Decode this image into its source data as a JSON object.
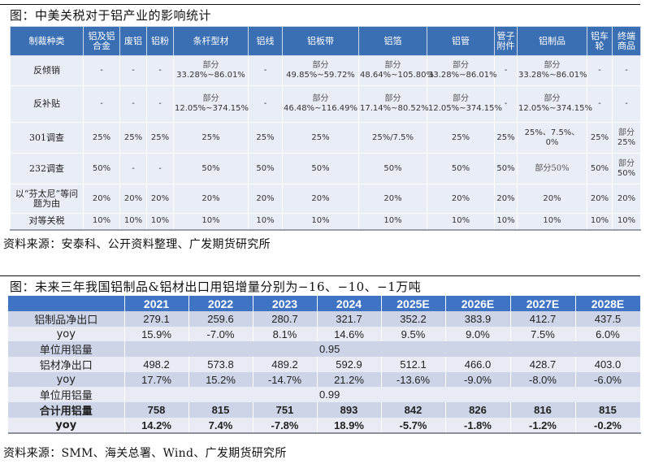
{
  "figure1": {
    "title": "图：中美关税对于铝产业的影响统计",
    "columns": [
      "制裁种类",
      "铝及铝合金",
      "废铝",
      "铝粉",
      "条杆型材",
      "铝线",
      "铝板带",
      "铝箔",
      "铝管",
      "管子附件",
      "铝制品",
      "铝车轮",
      "终端商品"
    ],
    "rows": [
      {
        "label": "反倾销",
        "cells": [
          "-",
          "-",
          "-",
          "部分|33.28%~86.01%",
          "-",
          "部分|49.85%~59.72%",
          "部分|48.64%~105.80%",
          "部分|33.28%~86.01%",
          "-",
          "部分|33.28%~86.01%",
          "-",
          "-"
        ]
      },
      {
        "label": "反补贴",
        "cells": [
          "-",
          "-",
          "-",
          "部分|12.05%~374.15%",
          "-",
          "部分|46.48%~116.49%",
          "部分|17.14%~80.52%",
          "部分|12.05%~374.15%",
          "-",
          "部分|12.05%~374.15%",
          "-",
          "-"
        ]
      },
      {
        "label": "301调查",
        "cells": [
          "25%",
          "25%",
          "25%",
          "25%",
          "25%",
          "25%",
          "25%/7.5%",
          "25%",
          "25%",
          "25%、7.5%、0%",
          "25%",
          "部分|25%"
        ]
      },
      {
        "label": "232调查",
        "cells": [
          "50%",
          "-",
          "-",
          "50%",
          "50%",
          "50%",
          "50%",
          "50%",
          "50%",
          "部分50%",
          "50%",
          "部分|50%"
        ]
      },
      {
        "label": "以“芬太尼”等问题为由",
        "cells": [
          "20%",
          "20%",
          "20%",
          "20%",
          "20%",
          "20%",
          "20%",
          "20%",
          "20%",
          "20%",
          "20%",
          "20%"
        ]
      },
      {
        "label": "对等关税",
        "cells": [
          "10%",
          "10%",
          "10%",
          "10%",
          "10%",
          "10%",
          "10%",
          "10%",
          "10%",
          "10%",
          "10%",
          "10%"
        ]
      }
    ],
    "source": "资料来源：安泰科、公开资料整理、广发期货研究所"
  },
  "figure2": {
    "title": "图：未来三年我国铝制品&铝材出口用铝增量分别为−16、−10、−1万吨",
    "years": [
      "2021",
      "2022",
      "2023",
      "2024",
      "2025E",
      "2026E",
      "2027E",
      "2028E"
    ],
    "rows": [
      {
        "label": "铝制品净出口",
        "values": [
          "279.1",
          "259.6",
          "280.7",
          "321.7",
          "352.2",
          "383.9",
          "412.7",
          "437.5"
        ]
      },
      {
        "label": "yoy",
        "values": [
          "15.9%",
          "-7.0%",
          "8.1%",
          "14.6%",
          "9.5%",
          "9.0%",
          "7.5%",
          "6.0%"
        ]
      },
      {
        "label": "单位用铝量",
        "merged": "0.95"
      },
      {
        "label": "铝材净出口",
        "values": [
          "498.2",
          "573.8",
          "489.2",
          "592.9",
          "512.1",
          "466.0",
          "428.7",
          "403.0"
        ]
      },
      {
        "label": "yoy",
        "values": [
          "17.7%",
          "15.2%",
          "-14.7%",
          "21.2%",
          "-13.6%",
          "-9.0%",
          "-8.0%",
          "-6.0%"
        ]
      },
      {
        "label": "单位用铝量",
        "merged": "0.99"
      },
      {
        "label": "合计用铝量",
        "values": [
          "758",
          "815",
          "751",
          "893",
          "842",
          "826",
          "816",
          "815"
        ]
      },
      {
        "label": "yoy",
        "values": [
          "14.2%",
          "7.4%",
          "-7.8%",
          "18.9%",
          "-5.7%",
          "-1.8%",
          "-1.2%",
          "-0.2%"
        ]
      }
    ],
    "source": "资料来源：SMM、海关总署、Wind、广发期货研究所"
  },
  "colors": {
    "header_blue": "#3a6fb3",
    "table1_cell": "#e9edf6",
    "table2_header": "#3f73c4",
    "table2_dark_row": "#cdd4e8",
    "table2_light_row": "#e8ebf4"
  }
}
